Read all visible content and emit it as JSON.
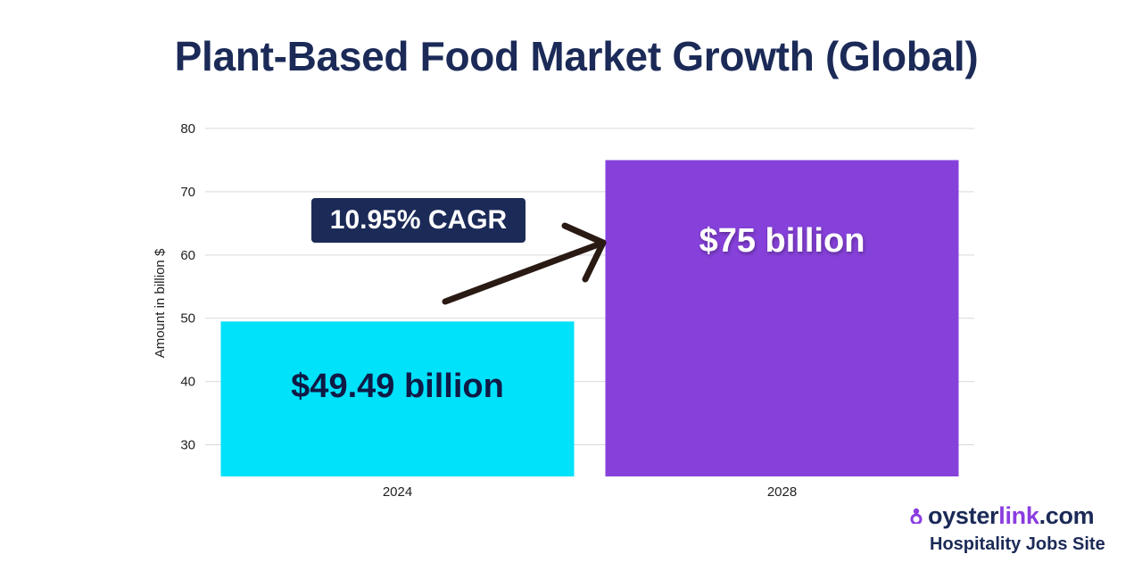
{
  "chart_data": {
    "type": "bar",
    "title": "Plant-Based Food Market Growth (Global)",
    "xlabel": "",
    "ylabel": "Amount in billion $",
    "categories": [
      "2024",
      "2028"
    ],
    "values": [
      49.49,
      75
    ],
    "data_labels": [
      "$49.49 billion",
      "$75 billion"
    ],
    "yticks": [
      "30",
      "40",
      "50",
      "60",
      "70",
      "80"
    ],
    "ylim": [
      25,
      80
    ],
    "grid": true,
    "legend": "none",
    "annotation": "10.95% CAGR",
    "colors": {
      "bars": [
        "#00e1fa",
        "#8741db"
      ],
      "labels": [
        "#0f1a45",
        "#ffffff"
      ],
      "grid": "#d9d9d9",
      "arrow": "#2a1a14",
      "annotation_bg": "#1b2a57"
    }
  },
  "branding": {
    "logo_icon": "oysterlink-logo-icon",
    "name_main": "oyster",
    "name_accent": "link",
    "name_suffix": ".com",
    "tagline": "Hospitality Jobs Site"
  }
}
